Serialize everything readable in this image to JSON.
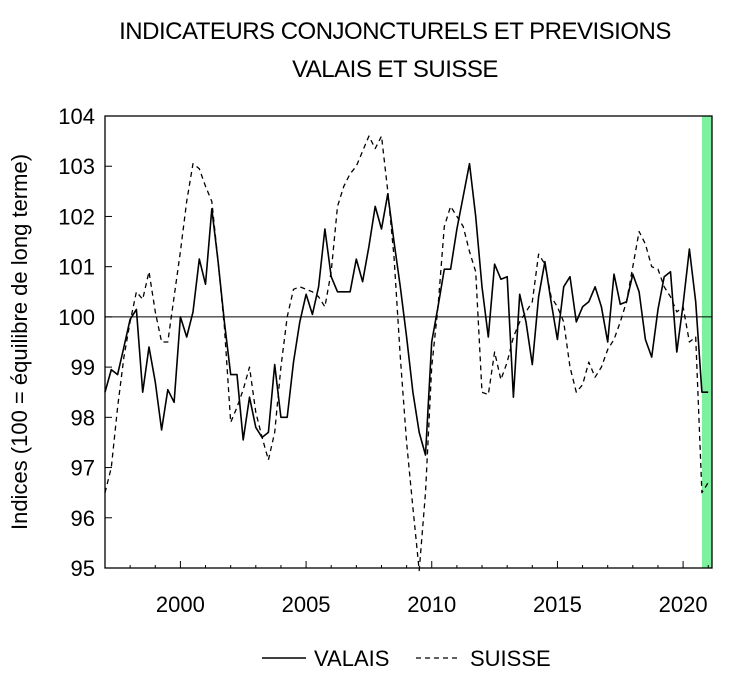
{
  "chart_data": {
    "type": "line",
    "title": "INDICATEURS CONJONCTURELS ET PREVISIONS",
    "subtitle": "VALAIS ET SUISSE",
    "ylabel": "Indices (100 = équilibre de long terme)",
    "xlabel": "",
    "xlim": [
      1997.0,
      2021.15
    ],
    "ylim": [
      95,
      104
    ],
    "x_ticks": [
      2000,
      2005,
      2010,
      2015,
      2020
    ],
    "y_ticks": [
      95,
      96,
      97,
      98,
      99,
      100,
      101,
      102,
      103,
      104
    ],
    "reference_line": 100,
    "forecast_band": {
      "from": 2020.75,
      "to": 2021.15,
      "color": "#7df29e"
    },
    "legend_placement": "bottom-center",
    "grid": false,
    "series": [
      {
        "name": "VALAIS",
        "style": "solid",
        "x": [
          1997.0,
          1997.25,
          1997.5,
          1997.75,
          1998.0,
          1998.25,
          1998.5,
          1998.75,
          1999.0,
          1999.25,
          1999.5,
          1999.75,
          2000.0,
          2000.25,
          2000.5,
          2000.75,
          2001.0,
          2001.25,
          2001.5,
          2001.75,
          2002.0,
          2002.25,
          2002.5,
          2002.75,
          2003.0,
          2003.25,
          2003.5,
          2003.75,
          2004.0,
          2004.25,
          2004.5,
          2004.75,
          2005.0,
          2005.25,
          2005.5,
          2005.75,
          2006.0,
          2006.25,
          2006.5,
          2006.75,
          2007.0,
          2007.25,
          2007.5,
          2007.75,
          2008.0,
          2008.25,
          2008.5,
          2008.75,
          2009.0,
          2009.25,
          2009.5,
          2009.75,
          2010.0,
          2010.25,
          2010.5,
          2010.75,
          2011.0,
          2011.25,
          2011.5,
          2011.75,
          2012.0,
          2012.25,
          2012.5,
          2012.75,
          2013.0,
          2013.25,
          2013.5,
          2013.75,
          2014.0,
          2014.25,
          2014.5,
          2014.75,
          2015.0,
          2015.25,
          2015.5,
          2015.75,
          2016.0,
          2016.25,
          2016.5,
          2016.75,
          2017.0,
          2017.25,
          2017.5,
          2017.75,
          2018.0,
          2018.25,
          2018.5,
          2018.75,
          2019.0,
          2019.25,
          2019.5,
          2019.75,
          2020.0,
          2020.25,
          2020.5,
          2020.75,
          2021.0
        ],
        "values": [
          98.5,
          98.95,
          98.85,
          99.4,
          99.95,
          100.15,
          98.5,
          99.4,
          98.7,
          97.75,
          98.55,
          98.3,
          100.0,
          99.6,
          100.1,
          101.15,
          100.65,
          102.15,
          101.1,
          99.9,
          98.85,
          98.85,
          97.55,
          98.4,
          97.8,
          97.6,
          97.7,
          99.05,
          98.0,
          98.0,
          99.1,
          99.9,
          100.45,
          100.05,
          100.6,
          101.75,
          100.8,
          100.5,
          100.5,
          100.5,
          101.15,
          100.7,
          101.4,
          102.2,
          101.75,
          102.45,
          101.5,
          100.6,
          99.6,
          98.5,
          97.7,
          97.25,
          99.5,
          100.2,
          100.95,
          100.95,
          101.75,
          102.4,
          103.05,
          102.0,
          100.6,
          99.6,
          101.05,
          100.75,
          100.8,
          98.4,
          100.45,
          99.9,
          99.05,
          100.4,
          101.1,
          100.3,
          99.55,
          100.6,
          100.8,
          99.9,
          100.2,
          100.3,
          100.6,
          100.2,
          99.5,
          100.85,
          100.25,
          100.3,
          100.85,
          100.5,
          99.55,
          99.2,
          100.15,
          100.8,
          100.9,
          99.3,
          100.25,
          101.35,
          100.3,
          98.5,
          98.5
        ]
      },
      {
        "name": "SUISSE",
        "style": "dashed",
        "x": [
          1997.0,
          1997.25,
          1997.5,
          1997.75,
          1998.0,
          1998.25,
          1998.5,
          1998.75,
          1999.0,
          1999.25,
          1999.5,
          1999.75,
          2000.0,
          2000.25,
          2000.5,
          2000.75,
          2001.0,
          2001.25,
          2001.5,
          2001.75,
          2002.0,
          2002.25,
          2002.5,
          2002.75,
          2003.0,
          2003.25,
          2003.5,
          2003.75,
          2004.0,
          2004.25,
          2004.5,
          2004.75,
          2005.0,
          2005.25,
          2005.5,
          2005.75,
          2006.0,
          2006.25,
          2006.5,
          2006.75,
          2007.0,
          2007.25,
          2007.5,
          2007.75,
          2008.0,
          2008.25,
          2008.5,
          2008.75,
          2009.0,
          2009.25,
          2009.5,
          2009.75,
          2010.0,
          2010.25,
          2010.5,
          2010.75,
          2011.0,
          2011.25,
          2011.5,
          2011.75,
          2012.0,
          2012.25,
          2012.5,
          2012.75,
          2013.0,
          2013.25,
          2013.5,
          2013.75,
          2014.0,
          2014.25,
          2014.5,
          2014.75,
          2015.0,
          2015.25,
          2015.5,
          2015.75,
          2016.0,
          2016.25,
          2016.5,
          2016.75,
          2017.0,
          2017.25,
          2017.5,
          2017.75,
          2018.0,
          2018.25,
          2018.5,
          2018.75,
          2019.0,
          2019.25,
          2019.5,
          2019.75,
          2020.0,
          2020.25,
          2020.5,
          2020.75,
          2021.0
        ],
        "values": [
          96.5,
          97.0,
          98.2,
          99.2,
          99.9,
          100.5,
          100.35,
          100.9,
          100.1,
          99.5,
          99.5,
          100.4,
          101.3,
          102.3,
          103.05,
          102.95,
          102.6,
          102.3,
          101.1,
          99.8,
          97.9,
          98.2,
          98.55,
          99.0,
          98.1,
          97.6,
          97.15,
          97.7,
          99.0,
          100.0,
          100.55,
          100.6,
          100.55,
          100.5,
          100.4,
          100.2,
          100.9,
          102.2,
          102.6,
          102.85,
          103.0,
          103.3,
          103.6,
          103.35,
          103.6,
          102.5,
          101.2,
          99.2,
          97.5,
          96.2,
          94.95,
          96.5,
          99.0,
          100.2,
          101.8,
          102.2,
          102.0,
          101.8,
          101.3,
          100.9,
          98.5,
          98.45,
          99.3,
          98.75,
          99.1,
          99.6,
          99.9,
          100.1,
          100.3,
          101.25,
          101.05,
          100.4,
          100.2,
          99.9,
          99.0,
          98.5,
          98.65,
          99.1,
          98.8,
          99.0,
          99.35,
          99.55,
          99.9,
          100.3,
          101.0,
          101.7,
          101.45,
          101.0,
          100.95,
          100.6,
          100.4,
          100.1,
          100.2,
          99.5,
          99.6,
          96.5,
          96.7
        ]
      }
    ]
  }
}
